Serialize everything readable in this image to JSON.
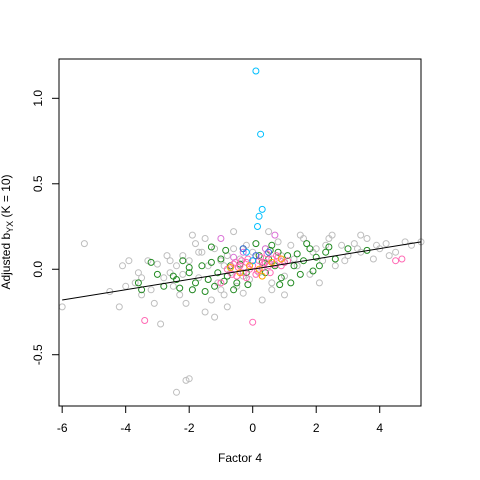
{
  "chart_data": {
    "type": "scatter",
    "title": "",
    "xlabel": "Factor 4",
    "ylabel_main": "Adjusted b",
    "ylabel_sub": "YX",
    "ylabel_suffix": " (K = 10)",
    "xlim": [
      -6.1,
      5.3
    ],
    "ylim": [
      -0.8,
      1.23
    ],
    "x_ticks": [
      -6,
      -4,
      -2,
      0,
      2,
      4
    ],
    "y_ticks": [
      -0.5,
      0.0,
      0.5,
      1.0
    ],
    "x_tick_labels": [
      "-6",
      "-4",
      "-2",
      "0",
      "2",
      "4"
    ],
    "y_tick_labels": [
      "-0.5",
      "0.0",
      "0.5",
      "1.0"
    ],
    "grid": false,
    "legend": "none",
    "regression_line": {
      "x": [
        -6.0,
        5.3
      ],
      "y": [
        -0.18,
        0.16
      ],
      "color": "#000000"
    },
    "series": [
      {
        "color": "#bebebe",
        "points": [
          [
            -6.0,
            -0.22
          ],
          [
            -5.3,
            0.15
          ],
          [
            -4.5,
            -0.13
          ],
          [
            -4.2,
            -0.22
          ],
          [
            -4.0,
            -0.1
          ],
          [
            -3.9,
            0.05
          ],
          [
            -3.7,
            -0.08
          ],
          [
            -3.5,
            -0.15
          ],
          [
            -3.3,
            0.05
          ],
          [
            -3.1,
            -0.2
          ],
          [
            -3.0,
            0.03
          ],
          [
            -2.9,
            -0.32
          ],
          [
            -2.8,
            -0.05
          ],
          [
            -2.6,
            0.05
          ],
          [
            -2.5,
            -0.1
          ],
          [
            -2.4,
            0.02
          ],
          [
            -2.3,
            -0.15
          ],
          [
            -2.2,
            0.08
          ],
          [
            -2.1,
            -0.2
          ],
          [
            -2.0,
            0.05
          ],
          [
            -1.9,
            -0.12
          ],
          [
            -1.8,
            0.15
          ],
          [
            -1.7,
            -0.05
          ],
          [
            -1.6,
            0.1
          ],
          [
            -1.5,
            -0.25
          ],
          [
            -1.4,
            0.02
          ],
          [
            -1.3,
            -0.18
          ],
          [
            -1.2,
            0.12
          ],
          [
            -1.1,
            -0.08
          ],
          [
            -1.0,
            0.05
          ],
          [
            -0.9,
            -0.15
          ],
          [
            -0.8,
            0.08
          ],
          [
            -0.7,
            -0.02
          ],
          [
            -0.6,
            0.12
          ],
          [
            -0.5,
            -0.1
          ],
          [
            -0.4,
            0.06
          ],
          [
            -0.3,
            -0.04
          ],
          [
            -0.2,
            0.14
          ],
          [
            -0.1,
            -0.06
          ],
          [
            0.0,
            0.1
          ],
          [
            0.2,
            -0.02
          ],
          [
            0.4,
            0.12
          ],
          [
            0.6,
            -0.08
          ],
          [
            0.8,
            0.16
          ],
          [
            1.0,
            -0.04
          ],
          [
            1.2,
            0.14
          ],
          [
            1.4,
            0.02
          ],
          [
            1.6,
            0.18
          ],
          [
            1.8,
            -0.03
          ],
          [
            2.0,
            0.12
          ],
          [
            2.2,
            0.05
          ],
          [
            2.4,
            0.18
          ],
          [
            2.6,
            0.02
          ],
          [
            2.8,
            0.14
          ],
          [
            3.0,
            0.08
          ],
          [
            3.2,
            0.15
          ],
          [
            3.4,
            0.1
          ],
          [
            3.6,
            0.18
          ],
          [
            3.8,
            0.06
          ],
          [
            4.0,
            0.12
          ],
          [
            4.2,
            0.15
          ],
          [
            4.5,
            0.1
          ],
          [
            4.8,
            0.16
          ],
          [
            5.0,
            0.14
          ],
          [
            5.3,
            0.16
          ],
          [
            -2.4,
            -0.72
          ],
          [
            -2.1,
            -0.65
          ],
          [
            -2.0,
            -0.64
          ],
          [
            -3.5,
            -0.05
          ],
          [
            -3.2,
            -0.12
          ],
          [
            -2.7,
            0.08
          ],
          [
            -1.9,
            0.2
          ],
          [
            -1.5,
            0.18
          ],
          [
            -0.6,
            0.22
          ],
          [
            0.5,
            0.22
          ],
          [
            1.5,
            0.2
          ],
          [
            2.5,
            0.2
          ],
          [
            3.4,
            0.2
          ],
          [
            -1.2,
            -0.28
          ],
          [
            -0.8,
            -0.22
          ],
          [
            0.3,
            -0.18
          ],
          [
            1.0,
            -0.15
          ],
          [
            2.1,
            -0.08
          ],
          [
            -4.1,
            0.02
          ],
          [
            -3.6,
            -0.02
          ],
          [
            -2.2,
            -0.03
          ],
          [
            -1.0,
            -0.12
          ],
          [
            0.9,
            0.08
          ],
          [
            1.9,
            0.1
          ],
          [
            2.9,
            0.05
          ],
          [
            3.9,
            0.14
          ],
          [
            -0.3,
            -0.14
          ],
          [
            0.6,
            -0.12
          ],
          [
            1.3,
            0.06
          ],
          [
            2.3,
            0.14
          ],
          [
            3.3,
            0.12
          ],
          [
            4.3,
            0.08
          ],
          [
            -2.6,
            -0.02
          ],
          [
            -1.7,
            0.1
          ],
          [
            -0.9,
            0.02
          ]
        ]
      },
      {
        "color": "#228b22",
        "points": [
          [
            -3.6,
            -0.08
          ],
          [
            -3.5,
            -0.12
          ],
          [
            -3.2,
            0.04
          ],
          [
            -3.0,
            -0.03
          ],
          [
            -2.8,
            -0.1
          ],
          [
            -2.5,
            -0.04
          ],
          [
            -2.2,
            0.05
          ],
          [
            -2.0,
            -0.02
          ],
          [
            -1.8,
            -0.08
          ],
          [
            -1.6,
            0.02
          ],
          [
            -1.4,
            -0.06
          ],
          [
            -1.3,
            0.04
          ],
          [
            -1.1,
            -0.02
          ],
          [
            -1.0,
            0.06
          ],
          [
            -0.8,
            -0.04
          ],
          [
            -0.7,
            0.02
          ],
          [
            -0.5,
            -0.08
          ],
          [
            -0.4,
            0.03
          ],
          [
            -0.2,
            -0.02
          ],
          [
            0.0,
            0.05
          ],
          [
            0.2,
            0.08
          ],
          [
            0.4,
            -0.02
          ],
          [
            0.5,
            0.06
          ],
          [
            0.7,
            0.02
          ],
          [
            0.8,
            0.1
          ],
          [
            1.0,
            0.04
          ],
          [
            1.1,
            0.08
          ],
          [
            1.3,
            0.02
          ],
          [
            1.4,
            0.09
          ],
          [
            1.6,
            0.05
          ],
          [
            1.8,
            0.12
          ],
          [
            2.0,
            0.07
          ],
          [
            2.3,
            0.1
          ],
          [
            2.6,
            0.06
          ],
          [
            3.0,
            0.12
          ],
          [
            3.6,
            0.11
          ],
          [
            -1.9,
            -0.12
          ],
          [
            -1.2,
            -0.1
          ],
          [
            -0.6,
            -0.12
          ],
          [
            0.9,
            -0.05
          ],
          [
            1.5,
            -0.03
          ],
          [
            0.6,
            0.14
          ],
          [
            -0.3,
            0.12
          ],
          [
            -2.4,
            -0.06
          ],
          [
            1.2,
            -0.08
          ],
          [
            -1.5,
            -0.13
          ],
          [
            0.1,
            0.15
          ],
          [
            2.1,
            0.02
          ],
          [
            -0.9,
            -0.07
          ],
          [
            0.3,
            0.04
          ],
          [
            -1.3,
            0.13
          ],
          [
            1.7,
            0.15
          ],
          [
            0.85,
            -0.09
          ],
          [
            -2.3,
            -0.11
          ],
          [
            0.55,
            0.11
          ],
          [
            -0.15,
            -0.09
          ],
          [
            1.9,
            -0.01
          ],
          [
            -0.85,
            0.11
          ],
          [
            -2.0,
            0.01
          ],
          [
            2.4,
            0.13
          ]
        ]
      },
      {
        "color": "#ff69b4",
        "points": [
          [
            -3.4,
            -0.3
          ],
          [
            -1.0,
            -0.08
          ],
          [
            -0.8,
            0.0
          ],
          [
            -0.6,
            0.03
          ],
          [
            -0.5,
            -0.04
          ],
          [
            -0.4,
            0.02
          ],
          [
            -0.3,
            -0.02
          ],
          [
            -0.2,
            0.04
          ],
          [
            -0.1,
            0.0
          ],
          [
            0.0,
            0.02
          ],
          [
            0.1,
            -0.03
          ],
          [
            0.2,
            0.05
          ],
          [
            0.3,
            0.01
          ],
          [
            0.4,
            0.04
          ],
          [
            0.5,
            0.02
          ],
          [
            0.6,
            0.06
          ],
          [
            0.7,
            0.03
          ],
          [
            0.8,
            0.07
          ],
          [
            1.0,
            0.04
          ],
          [
            4.5,
            0.05
          ],
          [
            4.7,
            0.06
          ],
          [
            0.0,
            -0.31
          ],
          [
            -0.2,
            -0.05
          ],
          [
            0.15,
            -0.01
          ],
          [
            0.35,
            0.03
          ],
          [
            -0.45,
            0.01
          ],
          [
            0.55,
            -0.02
          ],
          [
            0.75,
            0.08
          ],
          [
            -0.65,
            -0.03
          ],
          [
            0.9,
            0.02
          ],
          [
            -0.15,
            0.06
          ],
          [
            0.25,
            0.07
          ],
          [
            -0.35,
            0.05
          ],
          [
            0.45,
            0.09
          ],
          [
            -0.55,
            0.04
          ],
          [
            1.1,
            0.05
          ]
        ]
      },
      {
        "color": "#00bfff",
        "points": [
          [
            0.1,
            1.16
          ],
          [
            0.25,
            0.79
          ],
          [
            0.3,
            0.35
          ],
          [
            0.2,
            0.31
          ],
          [
            0.15,
            0.25
          ],
          [
            -0.2,
            0.1
          ],
          [
            0.0,
            0.05
          ]
        ]
      },
      {
        "color": "#da70d6",
        "points": [
          [
            -1.0,
            0.18
          ],
          [
            0.7,
            0.2
          ],
          [
            -0.3,
            0.1
          ],
          [
            0.4,
            0.12
          ],
          [
            -0.6,
            0.07
          ]
        ]
      },
      {
        "color": "#ffa500",
        "points": [
          [
            -0.4,
            -0.02
          ],
          [
            0.2,
            0.0
          ],
          [
            0.6,
            0.04
          ],
          [
            -0.1,
            0.02
          ],
          [
            0.9,
            0.06
          ],
          [
            0.3,
            -0.04
          ],
          [
            -0.7,
            0.01
          ]
        ]
      },
      {
        "color": "#4169e1",
        "points": [
          [
            -0.3,
            0.12
          ],
          [
            0.1,
            0.08
          ],
          [
            0.5,
            0.1
          ]
        ]
      }
    ]
  }
}
